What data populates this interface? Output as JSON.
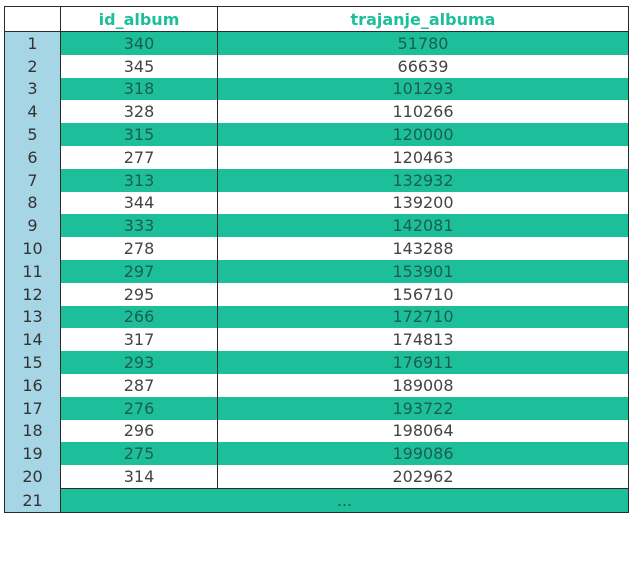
{
  "table": {
    "headers": [
      "",
      "id_album",
      "trajanje_albuma"
    ],
    "rows": [
      {
        "index": "1",
        "id_album": "340",
        "trajanje_albuma": "51780"
      },
      {
        "index": "2",
        "id_album": "345",
        "trajanje_albuma": "66639"
      },
      {
        "index": "3",
        "id_album": "318",
        "trajanje_albuma": "101293"
      },
      {
        "index": "4",
        "id_album": "328",
        "trajanje_albuma": "110266"
      },
      {
        "index": "5",
        "id_album": "315",
        "trajanje_albuma": "120000"
      },
      {
        "index": "6",
        "id_album": "277",
        "trajanje_albuma": "120463"
      },
      {
        "index": "7",
        "id_album": "313",
        "trajanje_albuma": "132932"
      },
      {
        "index": "8",
        "id_album": "344",
        "trajanje_albuma": "139200"
      },
      {
        "index": "9",
        "id_album": "333",
        "trajanje_albuma": "142081"
      },
      {
        "index": "10",
        "id_album": "278",
        "trajanje_albuma": "143288"
      },
      {
        "index": "11",
        "id_album": "297",
        "trajanje_albuma": "153901"
      },
      {
        "index": "12",
        "id_album": "295",
        "trajanje_albuma": "156710"
      },
      {
        "index": "13",
        "id_album": "266",
        "trajanje_albuma": "172710"
      },
      {
        "index": "14",
        "id_album": "317",
        "trajanje_albuma": "174813"
      },
      {
        "index": "15",
        "id_album": "293",
        "trajanje_albuma": "176911"
      },
      {
        "index": "16",
        "id_album": "287",
        "trajanje_albuma": "189008"
      },
      {
        "index": "17",
        "id_album": "276",
        "trajanje_albuma": "193722"
      },
      {
        "index": "18",
        "id_album": "296",
        "trajanje_albuma": "198064"
      },
      {
        "index": "19",
        "id_album": "275",
        "trajanje_albuma": "199086"
      },
      {
        "index": "20",
        "id_album": "314",
        "trajanje_albuma": "202962"
      }
    ],
    "last_row": {
      "index": "21",
      "ellipsis": "..."
    }
  }
}
